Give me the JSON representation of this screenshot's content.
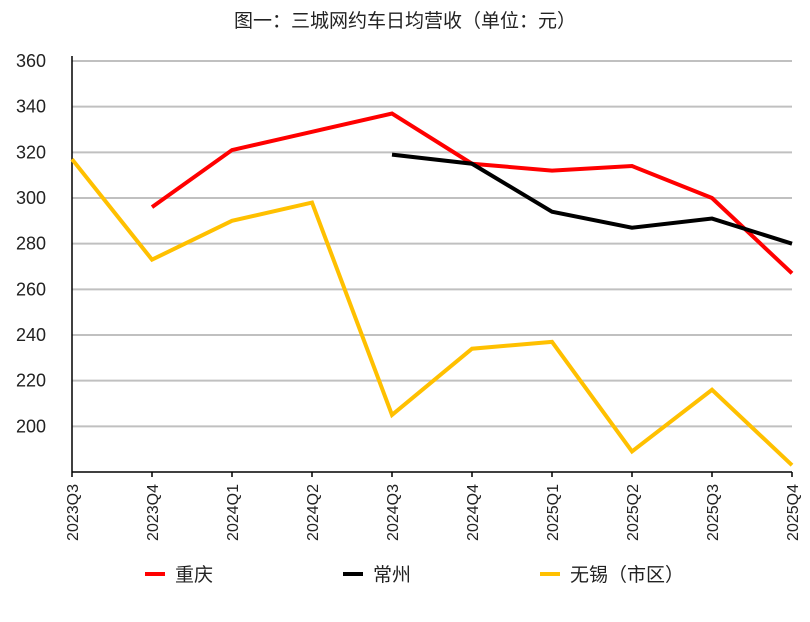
{
  "chart_data": {
    "type": "line",
    "title": "图一：三城网约车日均营收（单位：元）",
    "xlabel": "",
    "ylabel": "",
    "ylim": [
      180,
      360
    ],
    "yticks": [
      200,
      220,
      240,
      260,
      280,
      300,
      320,
      340,
      360
    ],
    "grid": true,
    "legend_position": "bottom",
    "categories": [
      "2023Q3",
      "2023Q4",
      "2024Q1",
      "2024Q2",
      "2024Q3",
      "2024Q4",
      "2025Q1",
      "2025Q2",
      "2025Q3",
      "2025Q4"
    ],
    "series": [
      {
        "name": "重庆",
        "color": "#ff0000",
        "values": [
          null,
          296,
          321,
          329,
          337,
          315,
          312,
          314,
          300,
          267
        ]
      },
      {
        "name": "常州",
        "color": "#000000",
        "values": [
          null,
          null,
          null,
          null,
          319,
          315,
          294,
          287,
          291,
          280
        ]
      },
      {
        "name": "无锡（市区）",
        "color": "#ffc000",
        "values": [
          317,
          273,
          290,
          298,
          205,
          234,
          237,
          189,
          216,
          183
        ]
      }
    ]
  },
  "legend": [
    {
      "label": "重庆",
      "color": "#ff0000"
    },
    {
      "label": "常州",
      "color": "#000000"
    },
    {
      "label": "无锡（市区）",
      "color": "#ffc000"
    }
  ]
}
